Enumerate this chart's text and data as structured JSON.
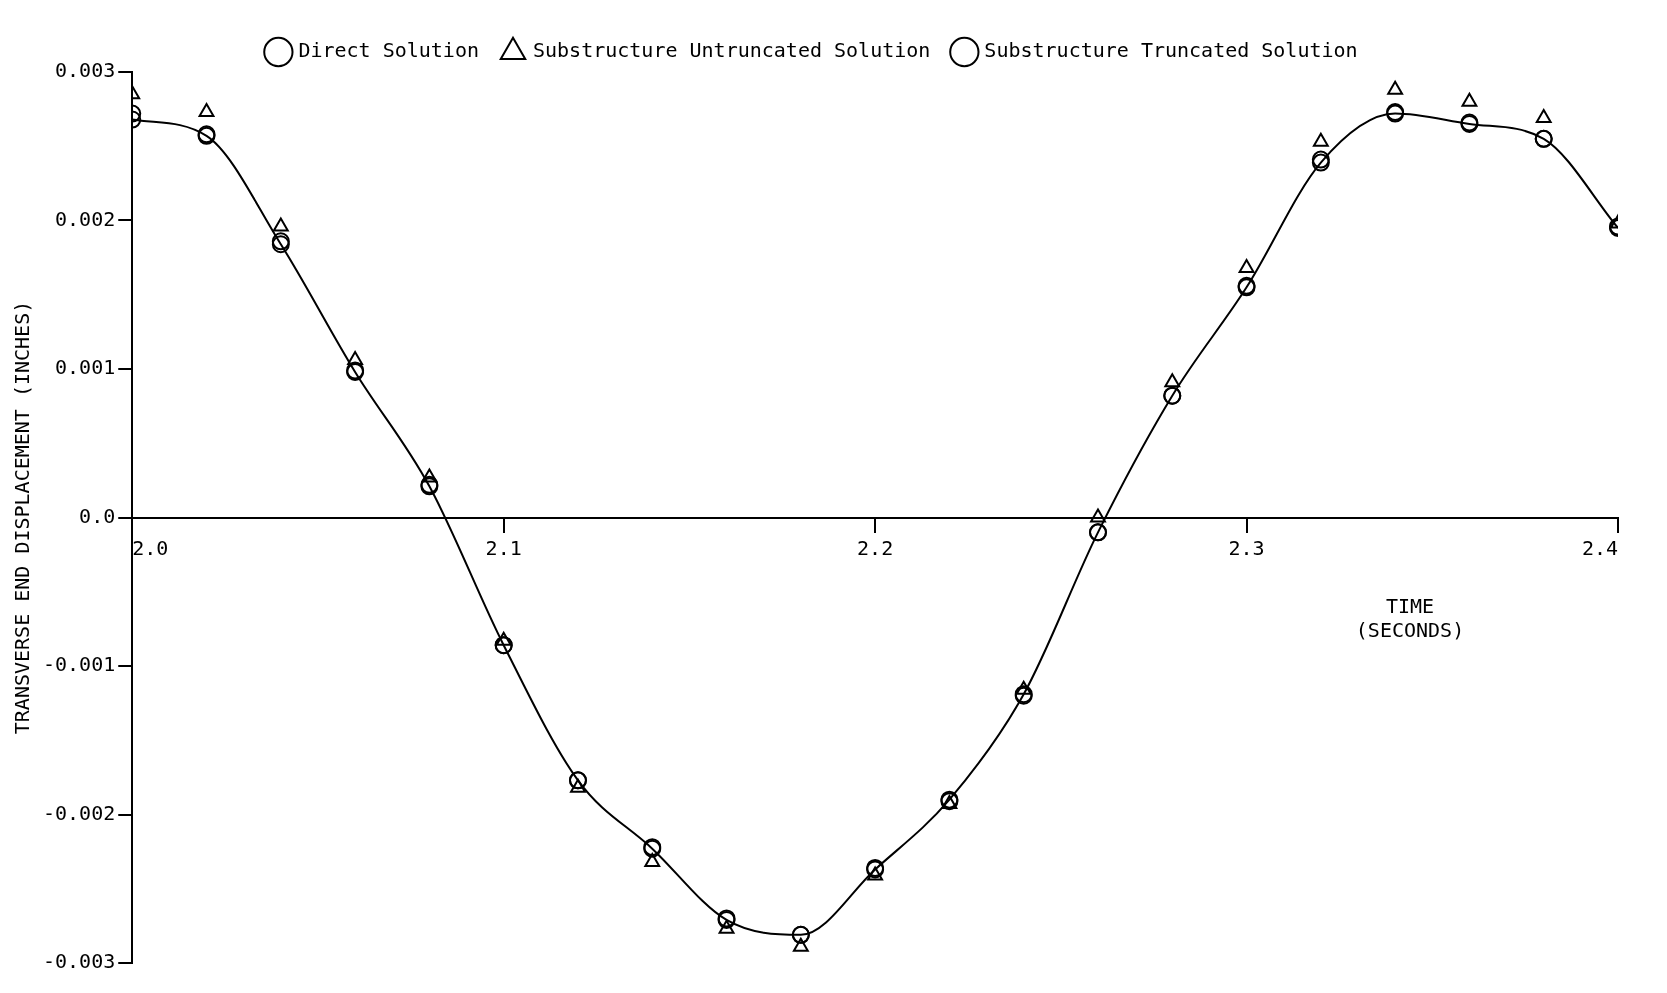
{
  "chart_data": {
    "type": "line",
    "xlabel": "TIME\n(SECONDS)",
    "ylabel": "TRANSVERSE END DISPLACEMENT (INCHES)",
    "x": [
      2.0,
      2.02,
      2.04,
      2.06,
      2.08,
      2.1,
      2.12,
      2.14,
      2.16,
      2.18,
      2.2,
      2.22,
      2.24,
      2.26,
      2.28,
      2.3,
      2.32,
      2.34,
      2.36,
      2.38,
      2.4
    ],
    "xlim": [
      2.0,
      2.4
    ],
    "xticks": [
      {
        "value": 2.0,
        "label": "2.0"
      },
      2.1,
      2.2,
      2.3,
      2.4
    ],
    "ylim": [
      -0.003,
      0.003
    ],
    "yticks": [
      -0.003,
      -0.002,
      -0.001,
      {
        "value": 0,
        "label": "0.0"
      },
      0.001,
      0.002,
      0.003
    ],
    "grid": false,
    "legend": "top",
    "series": [
      {
        "name": "Direct Solution",
        "type": "line",
        "color": "#000000",
        "marker": "circle",
        "line_style": "solid",
        "values": [
          0.00268,
          0.00257,
          0.00184,
          0.00098,
          0.00021,
          -0.00086,
          -0.00177,
          -0.00223,
          -0.00271,
          -0.00281,
          -0.00237,
          -0.0019,
          -0.00119,
          -0.0001,
          0.00082,
          0.00155,
          0.00239,
          0.00272,
          0.00265,
          0.00255,
          0.00195
        ]
      },
      {
        "name": "Substructure Untruncated Solution",
        "type": "scatter",
        "color": "#000000",
        "marker": "triangle",
        "values": [
          0.00285,
          0.00273,
          0.00196,
          0.00106,
          0.00027,
          -0.00083,
          -0.00182,
          -0.00232,
          -0.00277,
          -0.00289,
          -0.00241,
          -0.00193,
          -0.00116,
          0.0,
          0.00091,
          0.00168,
          0.00253,
          0.00288,
          0.0028,
          0.00269,
          0.00198
        ]
      },
      {
        "name": "Substructure Truncated Solution",
        "type": "scatter",
        "color": "#000000",
        "marker": "circle",
        "values": [
          0.00272,
          0.00258,
          0.00186,
          0.00099,
          0.00022,
          -0.00086,
          -0.00177,
          -0.00222,
          -0.0027,
          -0.00281,
          -0.00236,
          -0.00191,
          -0.0012,
          -0.0001,
          0.00082,
          0.00156,
          0.00241,
          0.00273,
          0.00266,
          0.00255,
          0.00196
        ]
      }
    ]
  }
}
